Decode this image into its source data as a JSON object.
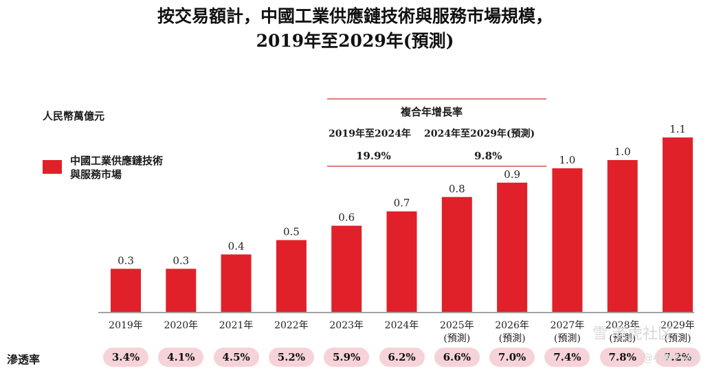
{
  "colors": {
    "bar": "#e02129",
    "accent_line": "#d42a2a",
    "pill": "#f6d3d8"
  },
  "chart_data": {
    "type": "bar",
    "title": "按交易額計，中國工業供應鏈技術與服務市場規模，",
    "subtitle": "2019年至2029年(預測)",
    "ylabel": "人民幣萬億元",
    "ylim": [
      0,
      1.2
    ],
    "grid": false,
    "legend_position": "top-left",
    "categories": [
      "2019年",
      "2020年",
      "2021年",
      "2022年",
      "2023年",
      "2024年",
      "2025年",
      "2026年",
      "2027年",
      "2028年",
      "2029年"
    ],
    "category_notes": [
      "",
      "",
      "",
      "",
      "",
      "",
      "(預測)",
      "(預測)",
      "(預測)",
      "(預測)",
      "(預測)"
    ],
    "series": [
      {
        "name": "中國工業供應鏈技術與服務市場",
        "values": [
          0.3,
          0.3,
          0.4,
          0.5,
          0.6,
          0.7,
          0.8,
          0.9,
          1.0,
          1.0,
          1.1
        ],
        "display": [
          "0.3",
          "0.3",
          "0.4",
          "0.5",
          "0.6",
          "0.7",
          "0.8",
          "0.9",
          "1.0",
          "1.0",
          "1.1"
        ]
      }
    ],
    "legend_lines": [
      "中國工業供應鏈技術",
      "與服務市場"
    ],
    "cagr": {
      "header": "複合年增長率",
      "periods": [
        "2019年至2024年",
        "2024年至2029年(預測)"
      ],
      "values": [
        "19.9%",
        "9.8%"
      ]
    },
    "penetration": {
      "label": "滲透率",
      "values": [
        "3.4%",
        "4.1%",
        "4.5%",
        "5.2%",
        "5.9%",
        "6.2%",
        "6.6%",
        "7.0%",
        "7.4%",
        "7.8%",
        "7.2%"
      ]
    }
  },
  "watermark": {
    "line1": "雪 老虎社区",
    "line2": "@小散艺術"
  }
}
